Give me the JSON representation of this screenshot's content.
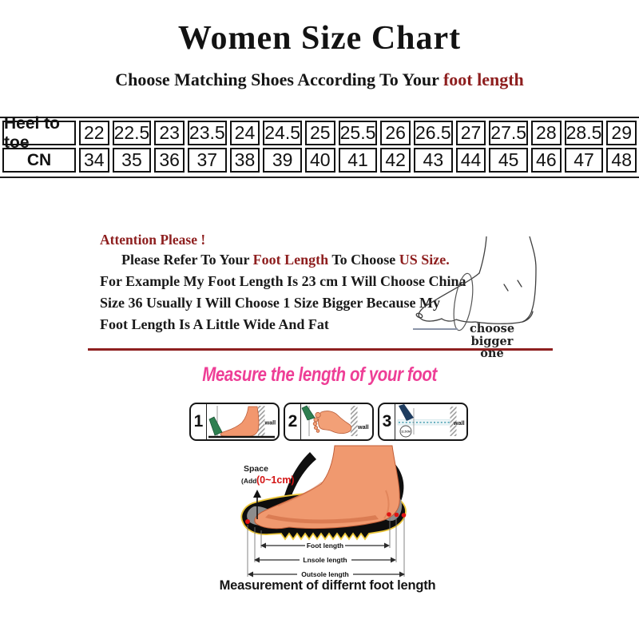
{
  "colors": {
    "dark_red": "#8e1f1f",
    "bright_red": "#d31414",
    "pink": "#ee3e96",
    "foot_salmon": "#f0996f",
    "foot_shade": "#d4734a",
    "pencil_green": "#2e7f50",
    "pencil_navy": "#1e3c5f",
    "insole_gray": "#8d8d8d",
    "outsole_outline_yellow": "#ecc73a"
  },
  "header": {
    "title": "Women Size Chart",
    "subtitle_prefix": "Choose Matching Shoes According To Your ",
    "subtitle_highlight": "foot length"
  },
  "size_table": {
    "rows": [
      {
        "label": "Heel to toe",
        "values": [
          "22",
          "22.5",
          "23",
          "23.5",
          "24",
          "24.5",
          "25",
          "25.5",
          "26",
          "26.5",
          "27",
          "27.5",
          "28",
          "28.5",
          "29"
        ]
      },
      {
        "label": "CN",
        "values": [
          "34",
          "35",
          "36",
          "37",
          "38",
          "39",
          "40",
          "41",
          "42",
          "43",
          "44",
          "45",
          "46",
          "47",
          "48"
        ]
      }
    ]
  },
  "attention": {
    "heading": "Attention Please !",
    "line1_parts": {
      "black1": "Please Refer To Your ",
      "red1": "Foot Length",
      "black2": " To Choose ",
      "red2": "US Size."
    },
    "line2": "For Example My Foot Length Is 23 cm I Will Choose China",
    "line3": "Size 36 Usually I Will Choose 1 Size Bigger Because My",
    "line4": "Foot Length Is A Little Wide And Fat",
    "sketch_note_line1": "choose",
    "sketch_note_line2": "bigger one"
  },
  "measure": {
    "title": "Measure the length of your foot",
    "steps": [
      {
        "number": "1",
        "wall": "wall"
      },
      {
        "number": "2",
        "wall": "wall"
      },
      {
        "number": "3",
        "wall": "wall",
        "circle": "11.5CM"
      }
    ],
    "space_label": "Space",
    "space_add": "(Add",
    "space_value": "(0~1cm)",
    "arrow_labels": [
      "Foot length",
      "Lnsole length",
      "Outsole length"
    ],
    "caption": "Measurement of differnt foot length"
  }
}
